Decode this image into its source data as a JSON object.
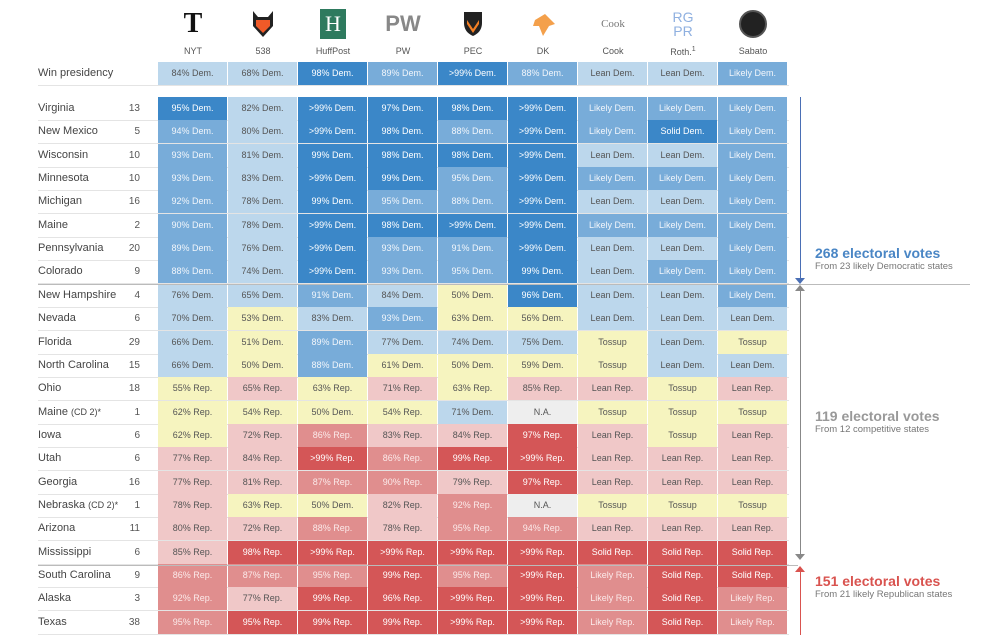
{
  "columns": [
    {
      "label": "NYT",
      "icon": "nyt-logo"
    },
    {
      "label": "538",
      "icon": "fox-logo"
    },
    {
      "label": "HuffPost",
      "icon": "huffpost-logo",
      "logo_text": "H"
    },
    {
      "label": "PW",
      "icon": "pw-logo",
      "logo_text": "PW"
    },
    {
      "label": "PEC",
      "icon": "princeton-shield-logo"
    },
    {
      "label": "DK",
      "icon": "dk-logo"
    },
    {
      "label": "Cook",
      "icon": "cook-logo",
      "logo_text": "Cook"
    },
    {
      "label": "Roth.",
      "sup": "1",
      "icon": "rgpr-logo",
      "logo_text": "RG PR"
    },
    {
      "label": "Sabato",
      "icon": "sabato-logo"
    }
  ],
  "summary": {
    "name": "Win presidency",
    "cells": [
      [
        "84% Dem.",
        "D1"
      ],
      [
        "68% Dem.",
        "D1"
      ],
      [
        "98% Dem.",
        "D3"
      ],
      [
        "89% Dem.",
        "D2"
      ],
      [
        ">99% Dem.",
        "D3"
      ],
      [
        "88% Dem.",
        "D2"
      ],
      [
        "Lean Dem.",
        "D1"
      ],
      [
        "Lean Dem.",
        "D1"
      ],
      [
        "Likely Dem.",
        "D2"
      ]
    ]
  },
  "rows": [
    {
      "name": "Virginia",
      "ev": "13",
      "cells": [
        [
          "95% Dem.",
          "D3"
        ],
        [
          "82% Dem.",
          "D1"
        ],
        [
          ">99% Dem.",
          "D3"
        ],
        [
          "97% Dem.",
          "D3"
        ],
        [
          "98% Dem.",
          "D3"
        ],
        [
          ">99% Dem.",
          "D3"
        ],
        [
          "Likely Dem.",
          "D2"
        ],
        [
          "Likely Dem.",
          "D2"
        ],
        [
          "Likely Dem.",
          "D2"
        ]
      ]
    },
    {
      "name": "New Mexico",
      "ev": "5",
      "cells": [
        [
          "94% Dem.",
          "D2"
        ],
        [
          "80% Dem.",
          "D1"
        ],
        [
          ">99% Dem.",
          "D3"
        ],
        [
          "98% Dem.",
          "D3"
        ],
        [
          "88% Dem.",
          "D2"
        ],
        [
          ">99% Dem.",
          "D3"
        ],
        [
          "Likely Dem.",
          "D2"
        ],
        [
          "Solid Dem.",
          "D3"
        ],
        [
          "Likely Dem.",
          "D2"
        ]
      ]
    },
    {
      "name": "Wisconsin",
      "ev": "10",
      "cells": [
        [
          "93% Dem.",
          "D2"
        ],
        [
          "81% Dem.",
          "D1"
        ],
        [
          "99% Dem.",
          "D3"
        ],
        [
          "98% Dem.",
          "D3"
        ],
        [
          "98% Dem.",
          "D3"
        ],
        [
          ">99% Dem.",
          "D3"
        ],
        [
          "Lean Dem.",
          "D1"
        ],
        [
          "Lean Dem.",
          "D1"
        ],
        [
          "Likely Dem.",
          "D2"
        ]
      ]
    },
    {
      "name": "Minnesota",
      "ev": "10",
      "cells": [
        [
          "93% Dem.",
          "D2"
        ],
        [
          "83% Dem.",
          "D1"
        ],
        [
          ">99% Dem.",
          "D3"
        ],
        [
          "99% Dem.",
          "D3"
        ],
        [
          "95% Dem.",
          "D2"
        ],
        [
          ">99% Dem.",
          "D3"
        ],
        [
          "Likely Dem.",
          "D2"
        ],
        [
          "Likely Dem.",
          "D2"
        ],
        [
          "Likely Dem.",
          "D2"
        ]
      ]
    },
    {
      "name": "Michigan",
      "ev": "16",
      "cells": [
        [
          "92% Dem.",
          "D2"
        ],
        [
          "78% Dem.",
          "D1"
        ],
        [
          "99% Dem.",
          "D3"
        ],
        [
          "95% Dem.",
          "D2"
        ],
        [
          "88% Dem.",
          "D2"
        ],
        [
          ">99% Dem.",
          "D3"
        ],
        [
          "Lean Dem.",
          "D1"
        ],
        [
          "Lean Dem.",
          "D1"
        ],
        [
          "Likely Dem.",
          "D2"
        ]
      ]
    },
    {
      "name": "Maine",
      "ev": "2",
      "cells": [
        [
          "90% Dem.",
          "D2"
        ],
        [
          "78% Dem.",
          "D1"
        ],
        [
          ">99% Dem.",
          "D3"
        ],
        [
          "98% Dem.",
          "D3"
        ],
        [
          ">99% Dem.",
          "D3"
        ],
        [
          ">99% Dem.",
          "D3"
        ],
        [
          "Likely Dem.",
          "D2"
        ],
        [
          "Likely Dem.",
          "D2"
        ],
        [
          "Likely Dem.",
          "D2"
        ]
      ]
    },
    {
      "name": "Pennsylvania",
      "ev": "20",
      "cells": [
        [
          "89% Dem.",
          "D2"
        ],
        [
          "76% Dem.",
          "D1"
        ],
        [
          ">99% Dem.",
          "D3"
        ],
        [
          "93% Dem.",
          "D2"
        ],
        [
          "91% Dem.",
          "D2"
        ],
        [
          ">99% Dem.",
          "D3"
        ],
        [
          "Lean Dem.",
          "D1"
        ],
        [
          "Lean Dem.",
          "D1"
        ],
        [
          "Likely Dem.",
          "D2"
        ]
      ]
    },
    {
      "name": "Colorado",
      "ev": "9",
      "cells": [
        [
          "88% Dem.",
          "D2"
        ],
        [
          "74% Dem.",
          "D1"
        ],
        [
          ">99% Dem.",
          "D3"
        ],
        [
          "93% Dem.",
          "D2"
        ],
        [
          "95% Dem.",
          "D2"
        ],
        [
          "99% Dem.",
          "D3"
        ],
        [
          "Lean Dem.",
          "D1"
        ],
        [
          "Likely Dem.",
          "D2"
        ],
        [
          "Likely Dem.",
          "D2"
        ]
      ]
    },
    {
      "name": "New Hampshire",
      "ev": "4",
      "cells": [
        [
          "76% Dem.",
          "D1"
        ],
        [
          "65% Dem.",
          "D1"
        ],
        [
          "91% Dem.",
          "D2"
        ],
        [
          "84% Dem.",
          "D1"
        ],
        [
          "50% Dem.",
          "T"
        ],
        [
          "96% Dem.",
          "D3"
        ],
        [
          "Lean Dem.",
          "D1"
        ],
        [
          "Lean Dem.",
          "D1"
        ],
        [
          "Likely Dem.",
          "D2"
        ]
      ]
    },
    {
      "name": "Nevada",
      "ev": "6",
      "cells": [
        [
          "70% Dem.",
          "D1"
        ],
        [
          "53% Dem.",
          "T"
        ],
        [
          "83% Dem.",
          "D1"
        ],
        [
          "93% Dem.",
          "D2"
        ],
        [
          "63% Dem.",
          "T"
        ],
        [
          "56% Dem.",
          "T"
        ],
        [
          "Lean Dem.",
          "D1"
        ],
        [
          "Lean Dem.",
          "D1"
        ],
        [
          "Lean Dem.",
          "D1"
        ]
      ]
    },
    {
      "name": "Florida",
      "ev": "29",
      "cells": [
        [
          "66% Dem.",
          "D1"
        ],
        [
          "51% Dem.",
          "T"
        ],
        [
          "89% Dem.",
          "D2"
        ],
        [
          "77% Dem.",
          "D1"
        ],
        [
          "74% Dem.",
          "D1"
        ],
        [
          "75% Dem.",
          "D1"
        ],
        [
          "Tossup",
          "T"
        ],
        [
          "Lean Dem.",
          "D1"
        ],
        [
          "Tossup",
          "T"
        ]
      ]
    },
    {
      "name": "North Carolina",
      "ev": "15",
      "cells": [
        [
          "66% Dem.",
          "D1"
        ],
        [
          "50% Dem.",
          "T"
        ],
        [
          "88% Dem.",
          "D2"
        ],
        [
          "61% Dem.",
          "T"
        ],
        [
          "50% Dem.",
          "T"
        ],
        [
          "59% Dem.",
          "T"
        ],
        [
          "Tossup",
          "T"
        ],
        [
          "Lean Dem.",
          "D1"
        ],
        [
          "Lean Dem.",
          "D1"
        ]
      ]
    },
    {
      "name": "Ohio",
      "ev": "18",
      "cells": [
        [
          "55% Rep.",
          "T"
        ],
        [
          "65% Rep.",
          "R1"
        ],
        [
          "63% Rep.",
          "T"
        ],
        [
          "71% Rep.",
          "R1"
        ],
        [
          "63% Rep.",
          "T"
        ],
        [
          "85% Rep.",
          "R1"
        ],
        [
          "Lean Rep.",
          "R1"
        ],
        [
          "Tossup",
          "T"
        ],
        [
          "Lean Rep.",
          "R1"
        ]
      ]
    },
    {
      "name": "Maine",
      "note": "(CD 2)*",
      "ev": "1",
      "cells": [
        [
          "62% Rep.",
          "T"
        ],
        [
          "54% Rep.",
          "T"
        ],
        [
          "50% Dem.",
          "T"
        ],
        [
          "54% Rep.",
          "T"
        ],
        [
          "71% Dem.",
          "D1"
        ],
        [
          "N.A.",
          "NA"
        ],
        [
          "Tossup",
          "T"
        ],
        [
          "Tossup",
          "T"
        ],
        [
          "Tossup",
          "T"
        ]
      ]
    },
    {
      "name": "Iowa",
      "ev": "6",
      "cells": [
        [
          "62% Rep.",
          "T"
        ],
        [
          "72% Rep.",
          "R1"
        ],
        [
          "86% Rep.",
          "R2"
        ],
        [
          "83% Rep.",
          "R1"
        ],
        [
          "84% Rep.",
          "R1"
        ],
        [
          "97% Rep.",
          "R3"
        ],
        [
          "Lean Rep.",
          "R1"
        ],
        [
          "Tossup",
          "T"
        ],
        [
          "Lean Rep.",
          "R1"
        ]
      ]
    },
    {
      "name": "Utah",
      "ev": "6",
      "cells": [
        [
          "77% Rep.",
          "R1"
        ],
        [
          "84% Rep.",
          "R1"
        ],
        [
          ">99% Rep.",
          "R3"
        ],
        [
          "86% Rep.",
          "R2"
        ],
        [
          "99% Rep.",
          "R3"
        ],
        [
          ">99% Rep.",
          "R3"
        ],
        [
          "Lean Rep.",
          "R1"
        ],
        [
          "Lean Rep.",
          "R1"
        ],
        [
          "Lean Rep.",
          "R1"
        ]
      ]
    },
    {
      "name": "Georgia",
      "ev": "16",
      "cells": [
        [
          "77% Rep.",
          "R1"
        ],
        [
          "81% Rep.",
          "R1"
        ],
        [
          "87% Rep.",
          "R2"
        ],
        [
          "90% Rep.",
          "R2"
        ],
        [
          "79% Rep.",
          "R1"
        ],
        [
          "97% Rep.",
          "R3"
        ],
        [
          "Lean Rep.",
          "R1"
        ],
        [
          "Lean Rep.",
          "R1"
        ],
        [
          "Lean Rep.",
          "R1"
        ]
      ]
    },
    {
      "name": "Nebraska",
      "note": "(CD 2)*",
      "ev": "1",
      "cells": [
        [
          "78% Rep.",
          "R1"
        ],
        [
          "63% Rep.",
          "T"
        ],
        [
          "50% Dem.",
          "T"
        ],
        [
          "82% Rep.",
          "R1"
        ],
        [
          "92% Rep.",
          "R2"
        ],
        [
          "N.A.",
          "NA"
        ],
        [
          "Tossup",
          "T"
        ],
        [
          "Tossup",
          "T"
        ],
        [
          "Tossup",
          "T"
        ]
      ]
    },
    {
      "name": "Arizona",
      "ev": "11",
      "cells": [
        [
          "80% Rep.",
          "R1"
        ],
        [
          "72% Rep.",
          "R1"
        ],
        [
          "88% Rep.",
          "R2"
        ],
        [
          "78% Rep.",
          "R1"
        ],
        [
          "95% Rep.",
          "R2"
        ],
        [
          "94% Rep.",
          "R2"
        ],
        [
          "Lean Rep.",
          "R1"
        ],
        [
          "Lean Rep.",
          "R1"
        ],
        [
          "Lean Rep.",
          "R1"
        ]
      ]
    },
    {
      "name": "Mississippi",
      "ev": "6",
      "cells": [
        [
          "85% Rep.",
          "R1"
        ],
        [
          "98% Rep.",
          "R3"
        ],
        [
          ">99% Rep.",
          "R3"
        ],
        [
          ">99% Rep.",
          "R3"
        ],
        [
          ">99% Rep.",
          "R3"
        ],
        [
          ">99% Rep.",
          "R3"
        ],
        [
          "Solid Rep.",
          "R3"
        ],
        [
          "Solid Rep.",
          "R3"
        ],
        [
          "Solid Rep.",
          "R3"
        ]
      ]
    },
    {
      "name": "South Carolina",
      "ev": "9",
      "cells": [
        [
          "86% Rep.",
          "R2"
        ],
        [
          "87% Rep.",
          "R2"
        ],
        [
          "95% Rep.",
          "R2"
        ],
        [
          "99% Rep.",
          "R3"
        ],
        [
          "95% Rep.",
          "R2"
        ],
        [
          ">99% Rep.",
          "R3"
        ],
        [
          "Likely Rep.",
          "R2"
        ],
        [
          "Solid Rep.",
          "R3"
        ],
        [
          "Solid Rep.",
          "R3"
        ]
      ]
    },
    {
      "name": "Alaska",
      "ev": "3",
      "cells": [
        [
          "92% Rep.",
          "R2"
        ],
        [
          "77% Rep.",
          "R1"
        ],
        [
          "99% Rep.",
          "R3"
        ],
        [
          "96% Rep.",
          "R3"
        ],
        [
          ">99% Rep.",
          "R3"
        ],
        [
          ">99% Rep.",
          "R3"
        ],
        [
          "Likely Rep.",
          "R2"
        ],
        [
          "Solid Rep.",
          "R3"
        ],
        [
          "Likely Rep.",
          "R2"
        ]
      ]
    },
    {
      "name": "Texas",
      "ev": "38",
      "cells": [
        [
          "95% Rep.",
          "R2"
        ],
        [
          "95% Rep.",
          "R3"
        ],
        [
          "99% Rep.",
          "R3"
        ],
        [
          "99% Rep.",
          "R3"
        ],
        [
          ">99% Rep.",
          "R3"
        ],
        [
          ">99% Rep.",
          "R3"
        ],
        [
          "Likely Rep.",
          "R2"
        ],
        [
          "Solid Rep.",
          "R3"
        ],
        [
          "Likely Rep.",
          "R2"
        ]
      ]
    }
  ],
  "annotations": [
    {
      "title": "268 electoral votes",
      "sub": "From 23 likely Democratic states",
      "color": "#4a86c5"
    },
    {
      "title": "119 electoral votes",
      "sub": "From 12 competitive states",
      "color": "#999999"
    },
    {
      "title": "151 electoral votes",
      "sub": "From 21 likely Republican states",
      "color": "#d9534f"
    }
  ]
}
